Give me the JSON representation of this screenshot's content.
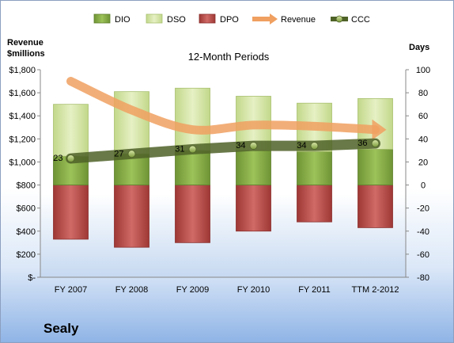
{
  "chart_data": {
    "type": "bar",
    "title": "12-Month Periods",
    "categories": [
      "FY 2007",
      "FY 2008",
      "FY 2009",
      "FY 2010",
      "FY 2011",
      "TTM 2-2012"
    ],
    "left_axis": {
      "label_lines": [
        "Revenue",
        "$millions"
      ],
      "ticks": [
        "$1,800",
        "$1,600",
        "$1,400",
        "$1,200",
        "$1,000",
        "$800",
        "$600",
        "$400",
        "$200",
        "$-"
      ],
      "ylim": [
        0,
        1800
      ]
    },
    "right_axis": {
      "label": "Days",
      "ticks": [
        "100",
        "80",
        "60",
        "40",
        "20",
        "0",
        "-20",
        "-40",
        "-60",
        "-80"
      ],
      "ylim": [
        -80,
        100
      ]
    },
    "series": [
      {
        "name": "DIO",
        "axis": "right",
        "values": [
          25,
          27,
          30,
          30,
          29,
          31
        ],
        "color": "#8ab04a"
      },
      {
        "name": "DSO",
        "axis": "right",
        "values": [
          45,
          54,
          54,
          47,
          42,
          44
        ],
        "color": "#d6e6a8"
      },
      {
        "name": "DPO",
        "axis": "right",
        "values": [
          -47,
          -54,
          -50,
          -40,
          -32,
          -37
        ],
        "color": "#c0504d"
      },
      {
        "name": "Revenue",
        "axis": "left",
        "values": [
          1700,
          1450,
          1280,
          1320,
          1310,
          1280
        ],
        "color": "#f0a060"
      },
      {
        "name": "CCC",
        "axis": "right",
        "values": [
          23,
          27,
          31,
          34,
          34,
          36
        ],
        "color": "#4f6228"
      }
    ],
    "data_labels": [
      "23",
      "27",
      "31",
      "34",
      "34",
      "36"
    ],
    "legend_position": "top",
    "grid": false
  },
  "company": "Sealy"
}
